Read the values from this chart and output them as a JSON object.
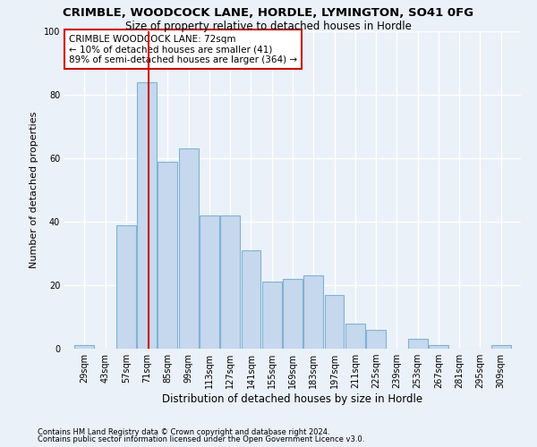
{
  "title1": "CRIMBLE, WOODCOCK LANE, HORDLE, LYMINGTON, SO41 0FG",
  "title2": "Size of property relative to detached houses in Hordle",
  "xlabel": "Distribution of detached houses by size in Hordle",
  "ylabel": "Number of detached properties",
  "footer1": "Contains HM Land Registry data © Crown copyright and database right 2024.",
  "footer2": "Contains public sector information licensed under the Open Government Licence v3.0.",
  "annotation_title": "CRIMBLE WOODCOCK LANE: 72sqm",
  "annotation_line2": "← 10% of detached houses are smaller (41)",
  "annotation_line3": "89% of semi-detached houses are larger (364) →",
  "property_size": 72,
  "bar_width": 13.5,
  "bin_starts": [
    29,
    43,
    57,
    71,
    85,
    99,
    113,
    127,
    141,
    155,
    169,
    183,
    197,
    211,
    225,
    239,
    253,
    267,
    281,
    295,
    309
  ],
  "counts": [
    1,
    0,
    39,
    84,
    59,
    63,
    42,
    42,
    31,
    21,
    22,
    23,
    17,
    8,
    6,
    0,
    3,
    1,
    0,
    0,
    1
  ],
  "bar_color": "#c5d8ed",
  "bar_edge_color": "#7fb3d3",
  "vline_color": "#cc0000",
  "bg_color": "#eaf1f8",
  "grid_color": "#ffffff",
  "annotation_box_color": "#ffffff",
  "annotation_border_color": "#cc0000",
  "ylim": [
    0,
    100
  ],
  "title1_fontsize": 9.5,
  "title2_fontsize": 8.5,
  "xlabel_fontsize": 8.5,
  "ylabel_fontsize": 8,
  "tick_fontsize": 7,
  "annotation_fontsize": 7.5
}
